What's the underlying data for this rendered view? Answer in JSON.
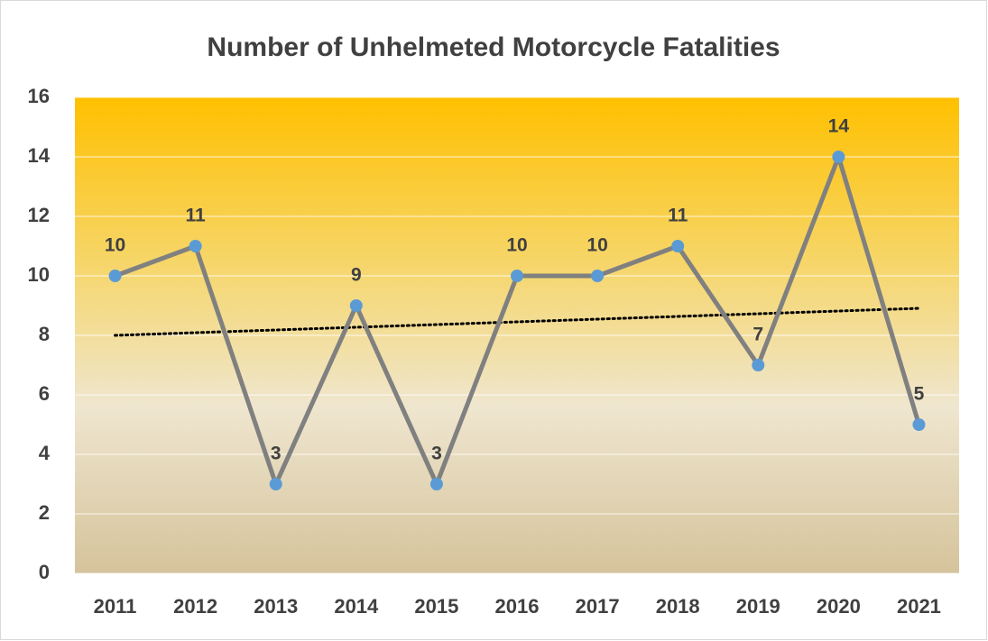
{
  "chart_data": {
    "type": "line",
    "title": "Number of Unhelmeted Motorcycle Fatalities",
    "categories": [
      "2011",
      "2012",
      "2013",
      "2014",
      "2015",
      "2016",
      "2017",
      "2018",
      "2019",
      "2020",
      "2021"
    ],
    "values": [
      10,
      11,
      3,
      9,
      3,
      10,
      10,
      11,
      7,
      14,
      5
    ],
    "color": "#808080",
    "marker_color": "#5b9bd5",
    "ylim": [
      0,
      16
    ],
    "yticks": [
      0,
      2,
      4,
      6,
      8,
      10,
      12,
      14,
      16
    ],
    "grid": true,
    "trendline": true,
    "data_labels": true
  }
}
